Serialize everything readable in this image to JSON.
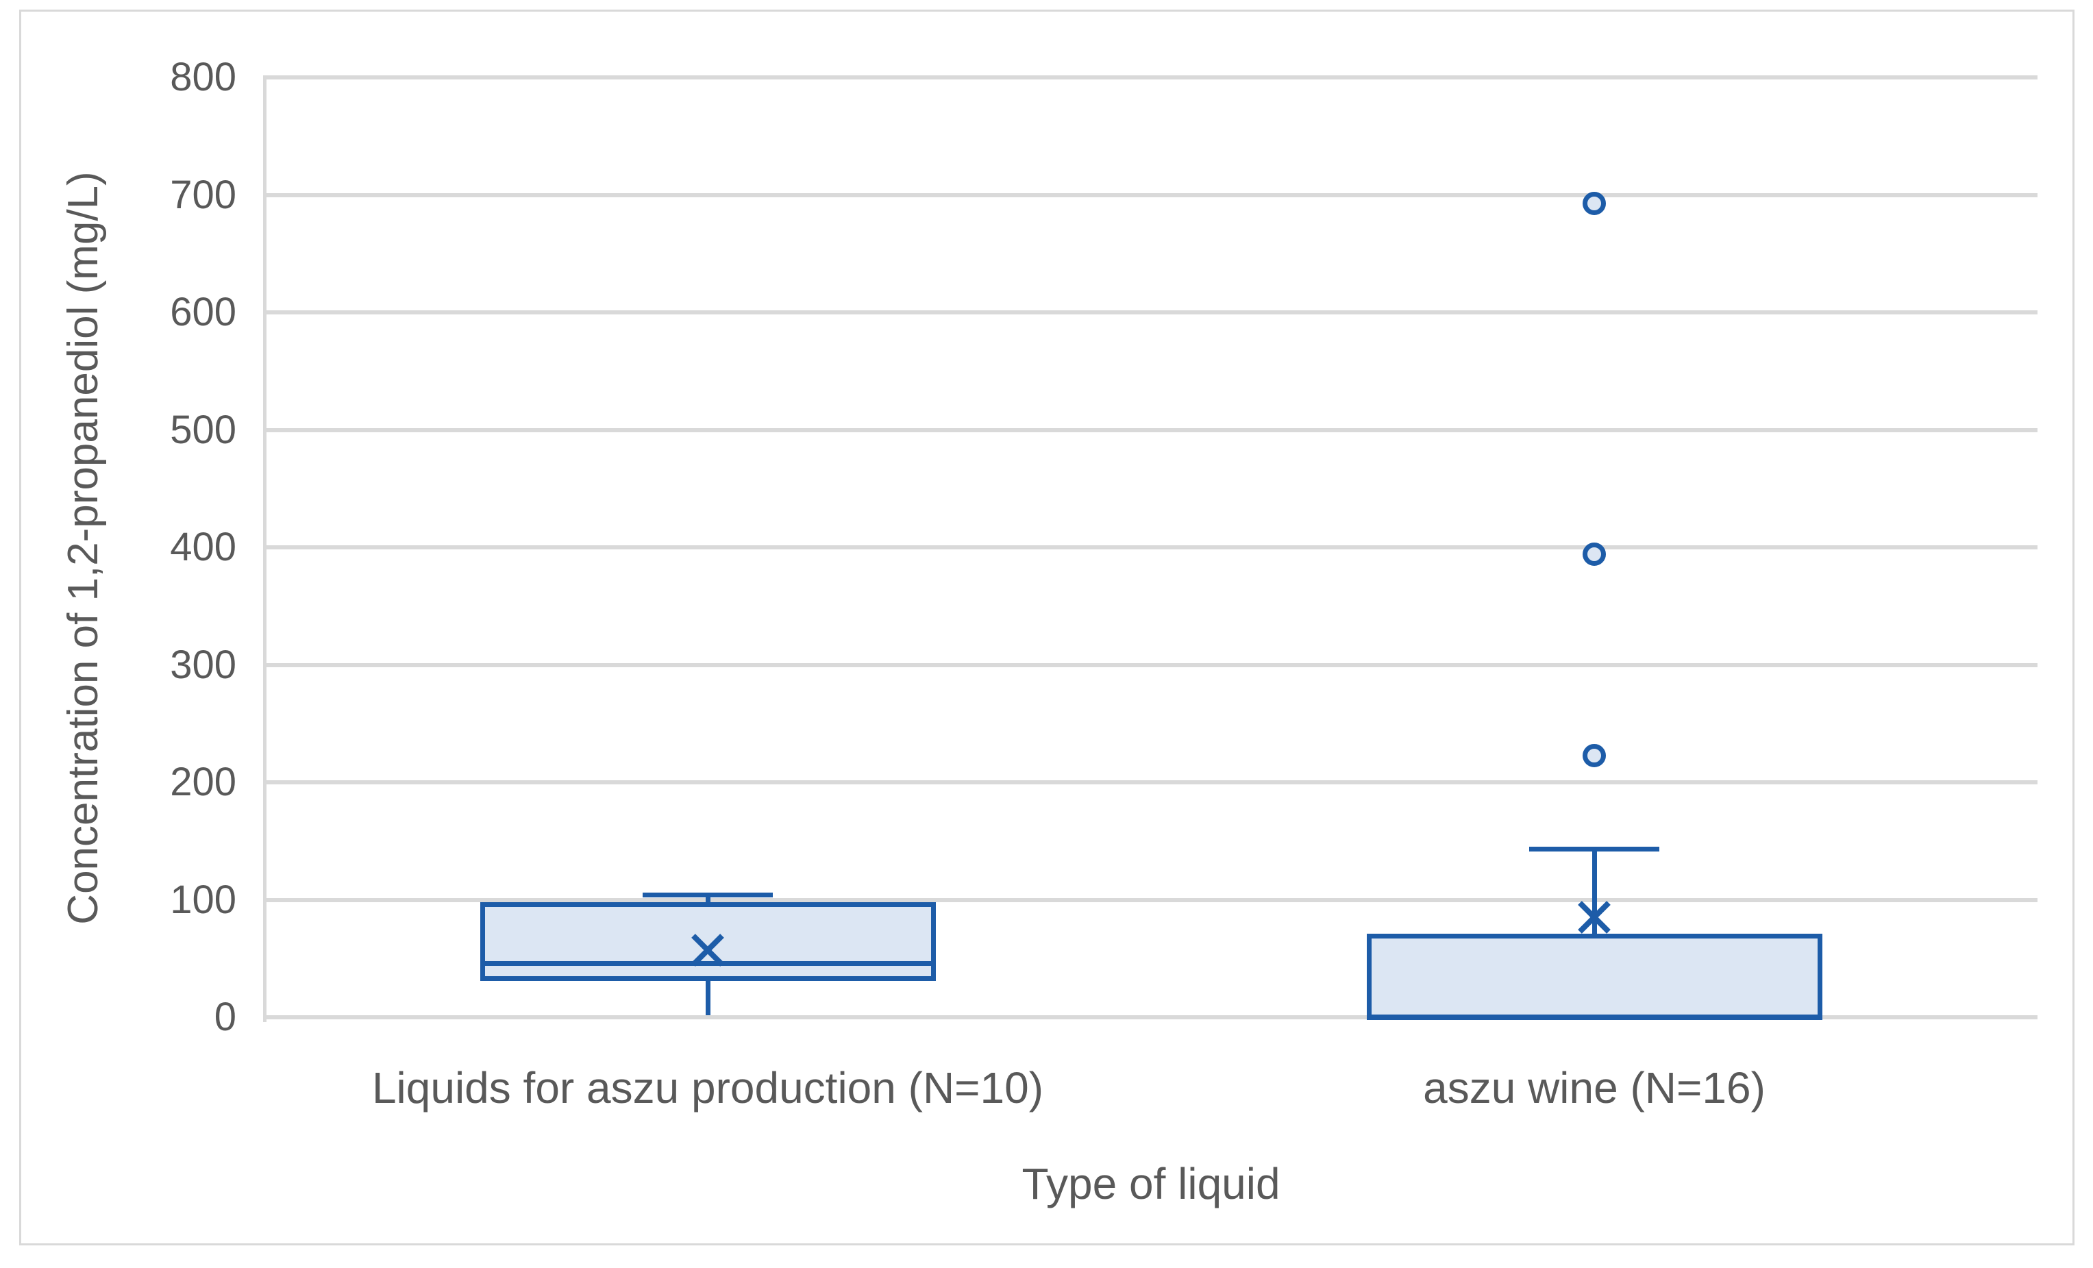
{
  "figure": {
    "background": "#FFFFFF",
    "border_color": "#D9D9D9"
  },
  "colors": {
    "box_stroke": "#1D5CA8",
    "box_fill": "#DCE6F3",
    "gridline": "#D9D9D9",
    "axis_line": "#D9D9D9",
    "text": "#595959"
  },
  "chart_data": {
    "type": "boxplot",
    "title": "",
    "xlabel": "Type of liquid",
    "ylabel": "Concentration of 1,2-propanediol (mg/L)",
    "ylim": [
      0,
      800
    ],
    "ytick_interval": 100,
    "yticks": [
      0,
      100,
      200,
      300,
      400,
      500,
      600,
      700,
      800
    ],
    "grid": "horizontal",
    "legend": "none",
    "categories": [
      "Liquids for aszu production (N=10)",
      "aszu wine (N=16)"
    ],
    "boxes": [
      {
        "category": "Liquids for aszu production (N=10)",
        "whisker_low": 2,
        "q1": 33,
        "median": 46,
        "q3": 96,
        "whisker_high": 104,
        "mean": 57,
        "outliers": [],
        "lower_cap": false,
        "upper_cap": true
      },
      {
        "category": "aszu wine (N=16)",
        "whisker_low": 0,
        "q1": 0,
        "median": 0,
        "q3": 69,
        "whisker_high": 143,
        "mean": 85,
        "outliers": [
          223,
          394,
          693
        ],
        "lower_cap": false,
        "upper_cap": true
      }
    ]
  }
}
